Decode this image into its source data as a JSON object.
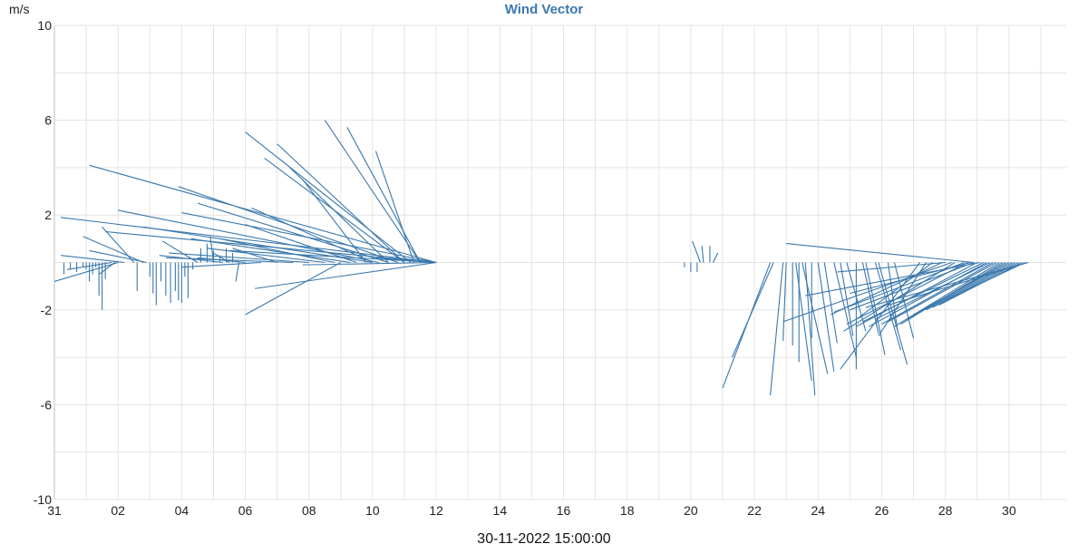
{
  "chart_data": {
    "type": "line",
    "title": "Wind Vector",
    "ylabel": "m/s",
    "caption": "30-11-2022 15:00:00",
    "ylim": [
      -10,
      10
    ],
    "xlim": [
      0,
      31.8
    ],
    "yticks": [
      "10",
      "6",
      "2",
      "-2",
      "-6",
      "-10"
    ],
    "ytick_values": [
      10,
      6,
      2,
      -2,
      -6,
      -10
    ],
    "xticks": [
      "31",
      "02",
      "04",
      "06",
      "08",
      "10",
      "12",
      "14",
      "16",
      "18",
      "20",
      "22",
      "24",
      "26",
      "28",
      "30"
    ],
    "xtick_values": [
      0,
      2,
      4,
      6,
      8,
      10,
      12,
      14,
      16,
      18,
      20,
      22,
      24,
      26,
      28,
      30
    ],
    "grid": true,
    "color": "#3a78ad",
    "title_color": "#3a78ad",
    "series": [
      {
        "values": [
          [
            12.0,
            0,
            1.1,
            4.1
          ],
          [
            12.0,
            0,
            0.2,
            1.9
          ],
          [
            12.0,
            0,
            1.6,
            1.3
          ],
          [
            12.0,
            0,
            4.0,
            2.1
          ],
          [
            12.0,
            0,
            5.5,
            0.5
          ],
          [
            12.0,
            0,
            6.3,
            -1.1
          ],
          [
            12.0,
            0,
            7.8,
            -0.1
          ],
          [
            12.0,
            0,
            10.1,
            0.2
          ],
          [
            11.5,
            0,
            8.5,
            6.0
          ],
          [
            11.5,
            0,
            9.2,
            5.7
          ],
          [
            11.3,
            0,
            10.1,
            4.7
          ],
          [
            11.2,
            0,
            6.0,
            5.5
          ],
          [
            11.0,
            0,
            6.6,
            4.4
          ],
          [
            11.0,
            0,
            7.0,
            5.0
          ],
          [
            10.8,
            0,
            3.9,
            3.2
          ],
          [
            10.5,
            0,
            4.5,
            2.5
          ],
          [
            10.5,
            0,
            7.4,
            4.0
          ],
          [
            10.2,
            0,
            2.0,
            2.2
          ],
          [
            10.0,
            0,
            2.8,
            1.5
          ],
          [
            10.0,
            0,
            6.2,
            2.3
          ],
          [
            9.8,
            0,
            7.8,
            3.5
          ],
          [
            9.5,
            0,
            6.0,
            1.6
          ],
          [
            9.3,
            0,
            4.3,
            1.0
          ],
          [
            9.0,
            0,
            6.0,
            -2.2
          ],
          [
            8.8,
            0,
            5.2,
            1.0
          ],
          [
            8.5,
            0,
            4.8,
            0.6
          ],
          [
            8.0,
            0,
            3.6,
            0.4
          ],
          [
            7.5,
            0,
            3.5,
            0.2
          ],
          [
            7.0,
            0,
            5.6,
            0.6
          ],
          [
            6.5,
            0,
            4.0,
            -0.2
          ],
          [
            6.0,
            0,
            4.5,
            0.2
          ],
          [
            5.8,
            0,
            5.7,
            -0.8
          ],
          [
            5.5,
            0,
            5.0,
            0.4
          ],
          [
            5.3,
            0,
            3.3,
            0.3
          ],
          [
            5.0,
            0,
            4.9,
            1.1
          ],
          [
            4.5,
            0,
            3.4,
            0.9
          ],
          [
            2.9,
            0,
            1.1,
            0.5
          ],
          [
            2.8,
            0,
            0.9,
            1.1
          ],
          [
            2.5,
            0,
            1.5,
            1.5
          ],
          [
            2.2,
            0,
            0.2,
            0.3
          ],
          [
            2.0,
            0,
            0.0,
            -0.8
          ],
          [
            1.9,
            0,
            1.4,
            -0.5
          ],
          [
            1.8,
            0,
            0.4,
            -0.3
          ],
          [
            0.3,
            0,
            0.3,
            -0.5
          ],
          [
            0.5,
            0,
            0.5,
            -0.3
          ],
          [
            0.7,
            0,
            0.7,
            -0.4
          ],
          [
            0.9,
            0,
            0.9,
            -0.2
          ],
          [
            1.0,
            0,
            1.0,
            -0.3
          ],
          [
            1.1,
            0,
            1.1,
            -0.8
          ],
          [
            1.2,
            0,
            1.2,
            -0.5
          ],
          [
            1.3,
            0,
            1.3,
            -0.2
          ],
          [
            1.4,
            0,
            1.4,
            -1.4
          ],
          [
            1.5,
            0,
            1.5,
            -2.0
          ],
          [
            1.6,
            0,
            1.6,
            -0.7
          ],
          [
            2.6,
            0,
            2.6,
            -1.2
          ],
          [
            3.0,
            0,
            3.0,
            -0.6
          ],
          [
            3.1,
            0,
            3.1,
            -1.3
          ],
          [
            3.2,
            0,
            3.2,
            -1.8
          ],
          [
            3.35,
            0,
            3.35,
            -0.8
          ],
          [
            3.5,
            0,
            3.5,
            -1.4
          ],
          [
            3.65,
            0,
            3.65,
            -1.7
          ],
          [
            3.8,
            0,
            3.8,
            -1.2
          ],
          [
            3.9,
            0,
            3.9,
            -1.6
          ],
          [
            4.0,
            0,
            4.0,
            -1.7
          ],
          [
            4.1,
            0,
            4.1,
            -0.6
          ],
          [
            4.2,
            0,
            4.2,
            -1.5
          ],
          [
            4.35,
            0,
            4.35,
            -0.3
          ],
          [
            4.6,
            0,
            4.6,
            0.6
          ],
          [
            4.8,
            0,
            4.8,
            0.8
          ],
          [
            5.0,
            0,
            5.0,
            0.5
          ],
          [
            5.2,
            0,
            5.2,
            0.3
          ],
          [
            5.4,
            0,
            5.4,
            0.6
          ],
          [
            5.6,
            0,
            5.6,
            0.4
          ],
          [
            19.8,
            0,
            19.8,
            -0.2
          ],
          [
            20.0,
            0,
            20.0,
            -0.4
          ],
          [
            20.2,
            0,
            20.2,
            -0.4
          ],
          [
            20.3,
            0,
            20.05,
            0.9
          ],
          [
            20.4,
            0,
            20.35,
            0.7
          ],
          [
            20.6,
            0,
            20.6,
            0.7
          ],
          [
            20.7,
            0,
            20.85,
            0.4
          ],
          [
            22.5,
            0,
            21.0,
            -5.3
          ],
          [
            22.6,
            0,
            21.3,
            -4.0
          ],
          [
            22.9,
            0,
            22.5,
            -5.6
          ],
          [
            23.0,
            0,
            22.9,
            -3.3
          ],
          [
            23.2,
            0,
            23.2,
            -3.5
          ],
          [
            23.4,
            0,
            23.4,
            -4.2
          ],
          [
            23.3,
            0,
            23.8,
            -5.0
          ],
          [
            23.5,
            0,
            24.3,
            -4.7
          ],
          [
            23.6,
            0,
            23.9,
            -5.6
          ],
          [
            23.8,
            0,
            23.8,
            -3.2
          ],
          [
            24.0,
            0,
            24.5,
            -4.6
          ],
          [
            24.2,
            0,
            24.6,
            -3.4
          ],
          [
            24.5,
            0,
            25.2,
            -4.0
          ],
          [
            24.7,
            0,
            25.1,
            -3.1
          ],
          [
            24.9,
            0,
            25.5,
            -2.9
          ],
          [
            25.2,
            0,
            25.2,
            -4.5
          ],
          [
            25.4,
            0,
            25.9,
            -3.0
          ],
          [
            25.5,
            0,
            26.1,
            -3.9
          ],
          [
            25.8,
            0,
            26.6,
            -3.7
          ],
          [
            25.9,
            0,
            26.8,
            -4.3
          ],
          [
            26.2,
            0,
            26.5,
            -2.9
          ],
          [
            26.4,
            0,
            27.0,
            -3.2
          ],
          [
            27.2,
            0,
            24.7,
            -4.5
          ],
          [
            27.4,
            0,
            25.9,
            -3.1
          ],
          [
            27.6,
            0,
            25.2,
            -2.4
          ],
          [
            27.9,
            0,
            24.4,
            -2.2
          ],
          [
            28.2,
            0,
            22.9,
            -2.5
          ],
          [
            28.3,
            0,
            24.8,
            -2.9
          ],
          [
            28.6,
            0,
            24.5,
            -2.1
          ],
          [
            28.7,
            0,
            24.9,
            -2.6
          ],
          [
            28.8,
            0,
            25.0,
            -1.3
          ],
          [
            28.0,
            0,
            24.6,
            -0.4
          ],
          [
            28.9,
            0,
            25.0,
            -2.0
          ],
          [
            29.0,
            0,
            25.2,
            -2.7
          ],
          [
            29.1,
            0,
            23.6,
            -1.4
          ],
          [
            28.9,
            0,
            23.0,
            0.8
          ],
          [
            29.2,
            0,
            25.4,
            -2.5
          ],
          [
            29.3,
            0,
            25.6,
            -2.7
          ],
          [
            29.4,
            0,
            25.8,
            -2.4
          ],
          [
            29.5,
            0,
            26.0,
            -2.6
          ],
          [
            29.6,
            0,
            26.2,
            -2.5
          ],
          [
            29.7,
            0,
            26.4,
            -2.7
          ],
          [
            29.8,
            0,
            26.6,
            -2.6
          ],
          [
            29.9,
            0,
            26.8,
            -2.4
          ],
          [
            30.0,
            0,
            27.0,
            -2.2
          ],
          [
            30.1,
            0,
            27.2,
            -2.1
          ],
          [
            30.2,
            0,
            27.4,
            -2.0
          ],
          [
            30.3,
            0,
            27.6,
            -1.9
          ],
          [
            30.4,
            0,
            27.8,
            -1.8
          ],
          [
            30.5,
            0,
            28.0,
            -1.6
          ],
          [
            30.6,
            0,
            26.2,
            -1.8
          ],
          [
            30.6,
            0,
            25.5,
            -1.9
          ]
        ]
      }
    ]
  }
}
